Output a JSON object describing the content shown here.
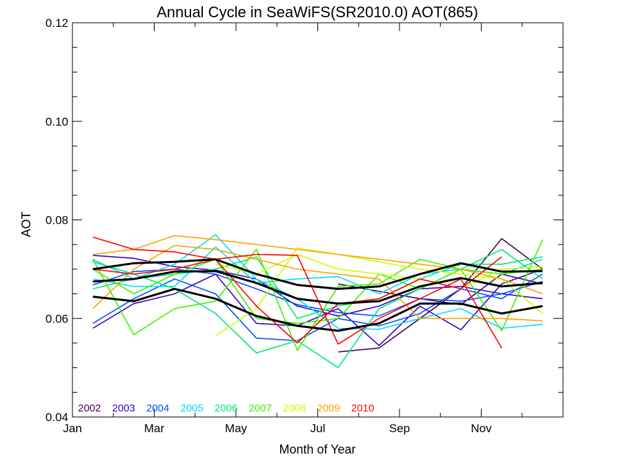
{
  "chart_data": {
    "type": "line",
    "title": "Annual Cycle in SeaWiFS(SR2010.0) AOT(865)",
    "xlabel": "Month of Year",
    "ylabel": "AOT",
    "xlim": [
      0,
      12
    ],
    "ylim": [
      0.04,
      0.12
    ],
    "x_ticks": [
      {
        "value": 0,
        "label": "Jan"
      },
      {
        "value": 2,
        "label": "Mar"
      },
      {
        "value": 4,
        "label": "May"
      },
      {
        "value": 6,
        "label": "Jul"
      },
      {
        "value": 8,
        "label": "Sep"
      },
      {
        "value": 10,
        "label": "Nov"
      }
    ],
    "x_minor_ticks": [
      1,
      3,
      5,
      7,
      9,
      11
    ],
    "y_ticks": [
      {
        "value": 0.04,
        "label": "0.04"
      },
      {
        "value": 0.06,
        "label": "0.06"
      },
      {
        "value": 0.08,
        "label": "0.08"
      },
      {
        "value": 0.1,
        "label": "0.10"
      },
      {
        "value": 0.12,
        "label": "0.12"
      }
    ],
    "y_minor_step": 0.005,
    "grid": false,
    "legend_position": "bottom-left",
    "series": [
      {
        "name": "2002",
        "color": "#4b0055",
        "values": [
          null,
          null,
          null,
          null,
          null,
          null,
          [
            0.0532,
            0.067
          ],
          [
            0.054,
            0.0655
          ],
          [
            0.06,
            0.064
          ],
          [
            0.066,
            0.0628
          ],
          [
            0.0762,
            0.069
          ],
          [
            0.07,
            0.067
          ]
        ]
      },
      {
        "name": "2003",
        "color": "#3c00c8",
        "values": [
          [
            0.058,
            0.0728
          ],
          [
            0.063,
            0.0722
          ],
          [
            0.065,
            0.0705
          ],
          [
            0.069,
            0.0698
          ],
          [
            0.059,
            0.068
          ],
          [
            0.0585,
            0.0625
          ],
          [
            0.062,
            0.0605
          ],
          [
            0.0545,
            0.0625
          ],
          [
            0.0625,
            0.066
          ],
          [
            0.0577,
            0.0665
          ],
          [
            0.067,
            0.065
          ],
          [
            0.07,
            0.064
          ]
        ]
      },
      {
        "name": "2004",
        "color": "#0050ff",
        "values": [
          [
            0.059,
            0.0668
          ],
          [
            0.064,
            0.0695
          ],
          [
            0.068,
            0.07
          ],
          [
            0.065,
            0.069
          ],
          [
            0.056,
            0.066
          ],
          [
            0.0555,
            0.0628
          ],
          [
            0.06,
            0.0612
          ],
          [
            0.0585,
            0.0605
          ],
          [
            0.061,
            0.064
          ],
          [
            0.066,
            0.0635
          ],
          [
            0.064,
            0.065
          ],
          [
            0.069,
            0.0675
          ]
        ]
      },
      {
        "name": "2005",
        "color": "#00dcff",
        "values": [
          [
            0.072,
            0.068
          ],
          [
            0.068,
            0.0665
          ],
          [
            0.071,
            0.0665
          ],
          [
            0.077,
            0.0745
          ],
          [
            0.068,
            0.0672
          ],
          [
            0.064,
            0.068
          ],
          [
            0.058,
            0.0685
          ],
          [
            0.0578,
            0.065
          ],
          [
            0.06,
            0.069
          ],
          [
            0.062,
            0.07
          ],
          [
            0.058,
            0.069
          ],
          [
            0.0588,
            0.072
          ]
        ]
      },
      {
        "name": "2006",
        "color": "#00e67d",
        "values": [
          [
            0.0715,
            0.066
          ],
          [
            0.069,
            0.068
          ],
          [
            0.066,
            0.069
          ],
          [
            0.061,
            0.07
          ],
          [
            0.053,
            0.0725
          ],
          [
            0.0555,
            0.06
          ],
          [
            0.05,
            0.0625
          ],
          [
            0.062,
            0.064
          ],
          [
            0.066,
            0.068
          ],
          [
            0.07,
            0.071
          ],
          [
            0.074,
            0.071
          ],
          [
            0.068,
            0.0725
          ]
        ]
      },
      {
        "name": "2007",
        "color": "#3cf000",
        "values": [
          [
            0.072,
            0.07
          ],
          [
            0.0567,
            0.065
          ],
          [
            0.062,
            0.069
          ],
          [
            0.0635,
            0.072
          ],
          [
            0.074,
            0.06
          ],
          [
            0.0535,
            0.059
          ],
          [
            0.0665,
            0.06
          ],
          [
            0.067,
            0.069
          ],
          [
            0.072,
            0.066
          ],
          [
            0.07,
            0.07
          ],
          [
            0.0575,
            0.069
          ],
          [
            0.076,
            0.07
          ]
        ]
      },
      {
        "name": "2008",
        "color": "#c8ff00",
        "values": [
          null,
          null,
          null,
          [
            0.0565,
            0.071
          ],
          [
            0.062,
            0.069
          ],
          [
            0.0743,
            0.073
          ],
          [
            0.073,
            0.07
          ],
          [
            0.0715,
            0.069
          ],
          [
            0.07,
            0.068
          ],
          [
            0.069,
            0.066
          ],
          [
            0.068,
            0.07
          ],
          [
            0.061,
            0.0705
          ]
        ]
      },
      {
        "name": "2009",
        "color": "#ffa000",
        "values": [
          [
            0.073,
            0.062
          ],
          [
            0.074,
            0.07
          ],
          [
            0.0768,
            0.0748
          ],
          [
            0.076,
            0.074
          ],
          [
            0.075,
            0.072
          ],
          [
            0.074,
            0.07
          ],
          [
            0.073,
            0.069
          ],
          [
            0.072,
            0.068
          ],
          [
            0.071,
            0.06
          ],
          [
            0.07,
            0.06
          ],
          [
            0.068,
            0.06
          ],
          [
            0.065,
            0.0595
          ]
        ]
      },
      {
        "name": "2010",
        "color": "#ff0000",
        "values": [
          [
            0.0765,
            0.07
          ],
          [
            0.074,
            0.069
          ],
          [
            0.0735,
            0.07
          ],
          [
            0.072,
            0.072
          ],
          [
            0.073,
            0.0625
          ],
          [
            0.0728,
            0.055
          ],
          [
            0.0548,
            0.063
          ],
          [
            0.06,
            0.064
          ],
          [
            0.064,
            0.068
          ],
          [
            0.068,
            0.066
          ],
          [
            0.054,
            0.0725
          ],
          null
        ]
      },
      {
        "name": "",
        "color": "#000000",
        "values": [
          0.07,
          0.0712,
          0.0715,
          0.072,
          0.069,
          0.0668,
          0.066,
          0.0665,
          0.069,
          0.0712,
          0.0695,
          0.0696
        ]
      },
      {
        "name": "",
        "color": "#000000",
        "values": [
          0.0675,
          0.068,
          0.0695,
          0.0696,
          0.0672,
          0.064,
          0.063,
          0.0635,
          0.0665,
          0.0682,
          0.0665,
          0.0672
        ]
      },
      {
        "name": "",
        "color": "#000000",
        "values": [
          0.0644,
          0.0635,
          0.066,
          0.064,
          0.0605,
          0.0585,
          0.0575,
          0.059,
          0.063,
          0.063,
          0.061,
          0.0625
        ]
      }
    ]
  }
}
